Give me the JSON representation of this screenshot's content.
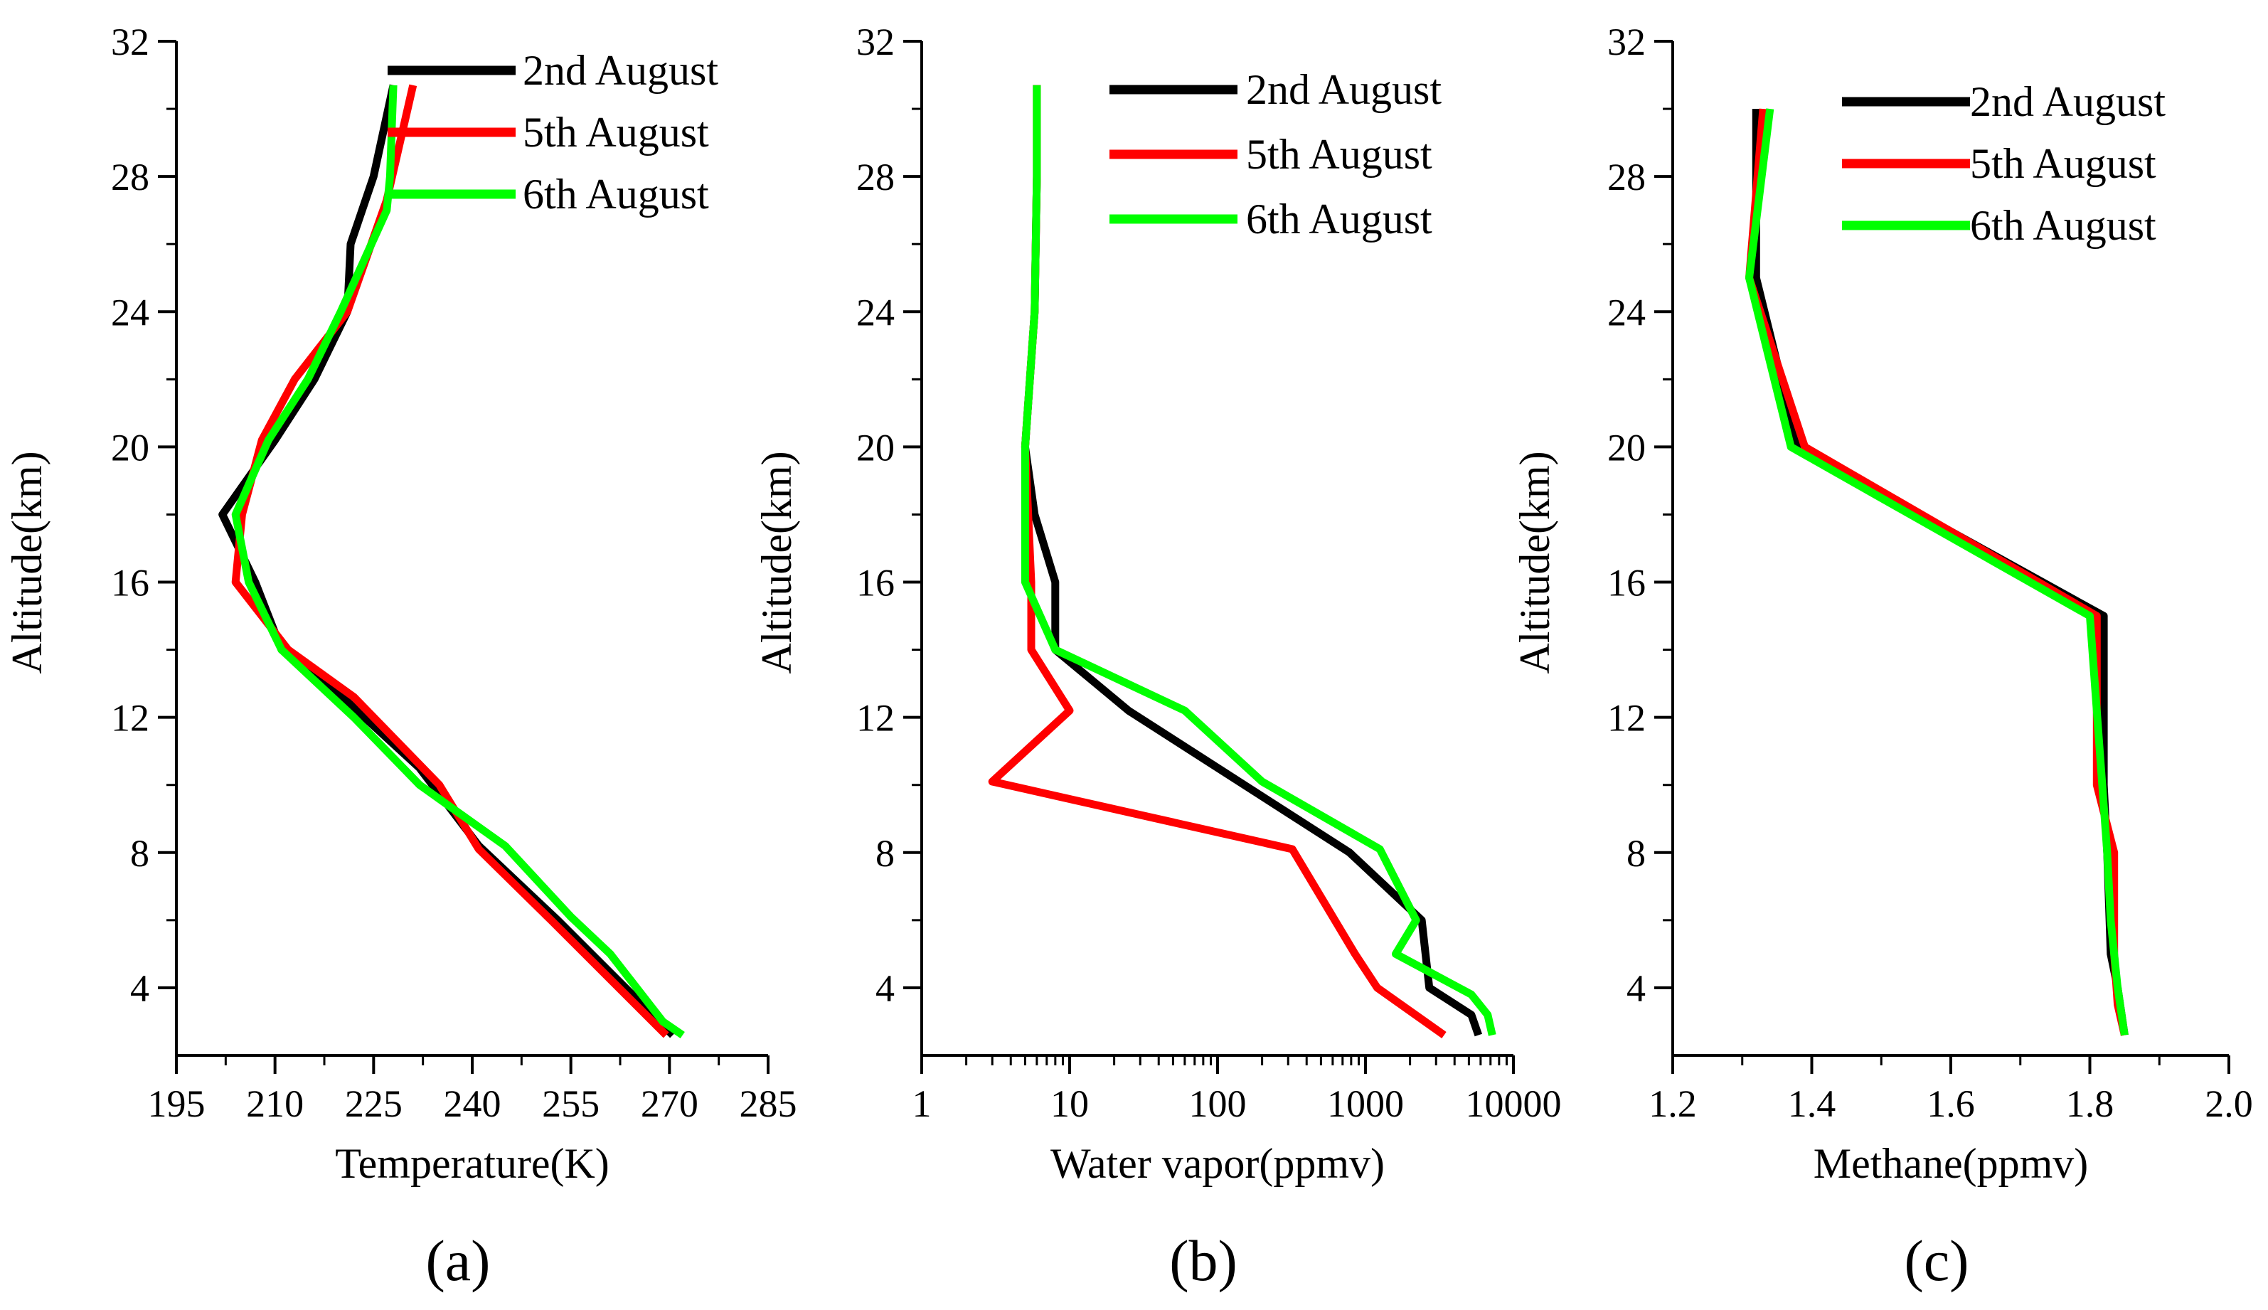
{
  "figure": {
    "legend_labels": [
      "2nd August",
      "5th August",
      "6th August"
    ],
    "series_colors": [
      "#000000",
      "#ff0000",
      "#00ff00"
    ]
  },
  "chart_data": [
    {
      "type": "line",
      "panel_label": "(a)",
      "xlabel": "Temperature(K)",
      "ylabel": "Altitude(km)",
      "xscale": "linear",
      "xlim": [
        195,
        285
      ],
      "ylim": [
        2,
        32
      ],
      "xticks": [
        195,
        210,
        225,
        240,
        255,
        270,
        285
      ],
      "yticks": [
        4,
        8,
        12,
        16,
        20,
        24,
        28,
        32
      ],
      "legend_position": "top-right",
      "series": [
        {
          "name": "2nd August",
          "color": "#000000",
          "x": [
            270.5,
            253,
            241,
            232,
            218,
            211,
            207,
            202,
            210,
            216,
            221,
            221.5,
            225,
            228
          ],
          "y": [
            2.6,
            6,
            8.2,
            10.5,
            13,
            14,
            16,
            18,
            20.2,
            22,
            24,
            26,
            28,
            30.7
          ]
        },
        {
          "name": "5th August",
          "color": "#ff0000",
          "x": [
            269.5,
            252,
            241,
            235,
            222,
            212,
            204,
            205,
            208,
            213,
            221,
            227,
            231
          ],
          "y": [
            2.6,
            6,
            8.1,
            10,
            12.6,
            14,
            16,
            18,
            20.2,
            22,
            24,
            27.3,
            30.7
          ]
        },
        {
          "name": "6th August",
          "color": "#00ff00",
          "x": [
            272,
            269,
            261,
            255,
            245,
            232,
            222,
            211,
            206,
            204,
            209,
            215,
            220,
            227,
            227.5,
            228
          ],
          "y": [
            2.6,
            3,
            5,
            6.1,
            8.2,
            10,
            12,
            14,
            16,
            18,
            20.2,
            22,
            24,
            27,
            28,
            30.7
          ]
        }
      ]
    },
    {
      "type": "line",
      "panel_label": "(b)",
      "xlabel": "Water vapor(ppmv)",
      "ylabel": "Altitude(km)",
      "xscale": "log",
      "xlim": [
        1,
        10000
      ],
      "ylim": [
        2,
        32
      ],
      "xticks": [
        1,
        10,
        100,
        1000,
        10000
      ],
      "xtick_labels": [
        "1",
        "10",
        "100",
        "1000",
        "10000"
      ],
      "yticks": [
        4,
        8,
        12,
        16,
        20,
        24,
        28,
        32
      ],
      "legend_position": "top-right",
      "series": [
        {
          "name": "2nd August",
          "color": "#000000",
          "x": [
            5800,
            5200,
            2700,
            2400,
            780,
            25,
            8,
            8,
            5.8,
            5,
            5.8,
            6,
            6
          ],
          "y": [
            2.6,
            3.2,
            4,
            6,
            8,
            12.2,
            14,
            16,
            18,
            20,
            24,
            28,
            30.7
          ]
        },
        {
          "name": "5th August",
          "color": "#ff0000",
          "x": [
            3400,
            1200,
            850,
            320,
            3,
            10,
            5.5,
            5.5,
            5,
            5.8,
            6,
            6
          ],
          "y": [
            2.6,
            4,
            5,
            8.1,
            10.1,
            12.2,
            14,
            16,
            20,
            24,
            28,
            30.7
          ]
        },
        {
          "name": "6th August",
          "color": "#00ff00",
          "x": [
            7200,
            6700,
            5200,
            1600,
            2200,
            1250,
            200,
            60,
            8,
            5,
            5,
            5.8,
            6,
            6
          ],
          "y": [
            2.6,
            3.2,
            3.8,
            5,
            6,
            8.1,
            10.1,
            12.2,
            14,
            16,
            20,
            24,
            28,
            30.7
          ]
        }
      ]
    },
    {
      "type": "line",
      "panel_label": "(c)",
      "xlabel": "Methane(ppmv)",
      "ylabel": "Altitude(km)",
      "xscale": "linear",
      "xlim": [
        1.2,
        2.0
      ],
      "ylim": [
        2,
        32
      ],
      "xticks": [
        1.2,
        1.4,
        1.6,
        1.8,
        2.0
      ],
      "xtick_labels": [
        "1.2",
        "1.4",
        "1.6",
        "1.8",
        "2.0"
      ],
      "yticks": [
        4,
        8,
        12,
        16,
        20,
        24,
        28,
        32
      ],
      "legend_position": "top-right",
      "series": [
        {
          "name": "2nd August",
          "color": "#000000",
          "x": [
            1.85,
            1.84,
            1.83,
            1.825,
            1.82,
            1.82,
            1.38,
            1.32,
            1.32
          ],
          "y": [
            2.6,
            4,
            5,
            8,
            10,
            15,
            20,
            25,
            30
          ]
        },
        {
          "name": "5th August",
          "color": "#ff0000",
          "x": [
            1.85,
            1.84,
            1.835,
            1.835,
            1.81,
            1.81,
            1.39,
            1.31,
            1.33
          ],
          "y": [
            2.6,
            3.5,
            5,
            8,
            10,
            15,
            20,
            25,
            30
          ]
        },
        {
          "name": "6th August",
          "color": "#00ff00",
          "x": [
            1.85,
            1.84,
            1.83,
            1.825,
            1.8,
            1.37,
            1.31,
            1.34
          ],
          "y": [
            2.6,
            4,
            6,
            8,
            15,
            20,
            25,
            30
          ]
        }
      ]
    }
  ]
}
